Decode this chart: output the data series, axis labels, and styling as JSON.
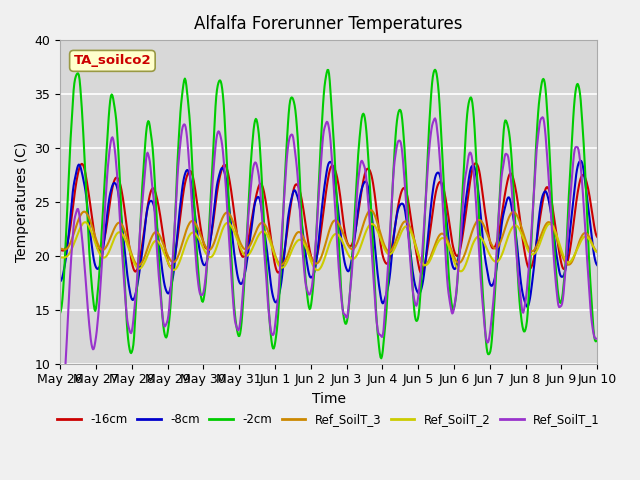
{
  "title": "Alfalfa Forerunner Temperatures",
  "xlabel": "Time",
  "ylabel": "Temperatures (C)",
  "ylim": [
    10,
    40
  ],
  "annotation": "TA_soilco2",
  "fig_bg_color": "#f0f0f0",
  "plot_bg_color": "#d8d8d8",
  "tick_dates": [
    "May 26",
    "May 27",
    "May 28",
    "May 29",
    "May 30",
    "May 31",
    "Jun 1",
    "Jun 2",
    "Jun 3",
    "Jun 4",
    "Jun 5",
    "Jun 6",
    "Jun 7",
    "Jun 8",
    "Jun 9",
    "Jun 10"
  ],
  "yticks": [
    10,
    15,
    20,
    25,
    30,
    35,
    40
  ],
  "series_order": [
    "-16cm",
    "-8cm",
    "-2cm",
    "Ref_SoilT_3",
    "Ref_SoilT_2",
    "Ref_SoilT_1"
  ],
  "series": {
    "-16cm": {
      "color": "#cc0000",
      "lw": 1.5
    },
    "-8cm": {
      "color": "#0000cc",
      "lw": 1.5
    },
    "-2cm": {
      "color": "#00cc00",
      "lw": 1.5
    },
    "Ref_SoilT_3": {
      "color": "#cc8800",
      "lw": 1.5
    },
    "Ref_SoilT_2": {
      "color": "#cccc00",
      "lw": 1.5
    },
    "Ref_SoilT_1": {
      "color": "#9933cc",
      "lw": 1.5
    }
  }
}
